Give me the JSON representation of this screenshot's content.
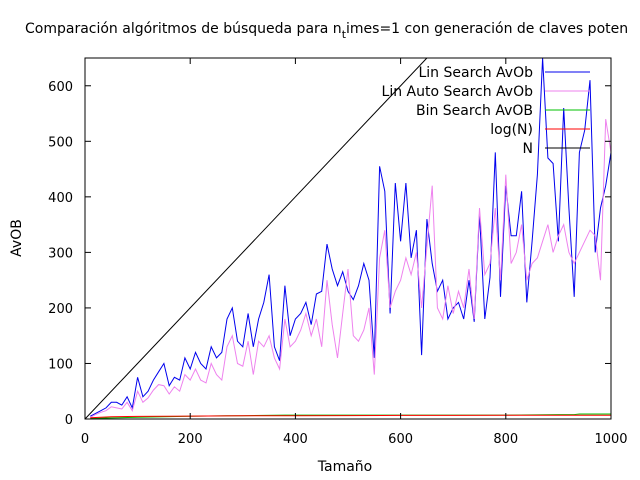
{
  "chart_data": {
    "type": "line",
    "title_main": "Comparación algóritmos de búsqueda para n",
    "title_sub": "t",
    "title_rest": "imes=1 con generación de claves poten",
    "xlabel": "Tamaño",
    "ylabel": "AvOB",
    "xlim": [
      0,
      1000
    ],
    "ylim": [
      0,
      650
    ],
    "xticks": [
      0,
      200,
      400,
      600,
      800,
      1000
    ],
    "yticks": [
      0,
      100,
      200,
      300,
      400,
      500,
      600
    ],
    "grid": false,
    "legend_position": "top-right",
    "series": [
      {
        "name": "Lin Search AvOb",
        "color": "#0000ee",
        "x": [
          10,
          20,
          30,
          40,
          50,
          60,
          70,
          80,
          90,
          100,
          110,
          120,
          130,
          140,
          150,
          160,
          170,
          180,
          190,
          200,
          210,
          220,
          230,
          240,
          250,
          260,
          270,
          280,
          290,
          300,
          310,
          320,
          330,
          340,
          350,
          360,
          370,
          380,
          390,
          400,
          410,
          420,
          430,
          440,
          450,
          460,
          470,
          480,
          490,
          500,
          510,
          520,
          530,
          540,
          550,
          560,
          570,
          580,
          590,
          600,
          610,
          620,
          630,
          640,
          650,
          660,
          670,
          680,
          690,
          700,
          710,
          720,
          730,
          740,
          750,
          760,
          770,
          780,
          790,
          800,
          810,
          820,
          830,
          840,
          850,
          860,
          870,
          880,
          890,
          900,
          910,
          920,
          930,
          940,
          950,
          960,
          970,
          980,
          990,
          1000
        ],
        "y": [
          5,
          10,
          15,
          20,
          30,
          30,
          25,
          40,
          20,
          75,
          40,
          50,
          70,
          85,
          100,
          60,
          75,
          70,
          110,
          90,
          120,
          100,
          90,
          130,
          110,
          120,
          180,
          200,
          140,
          130,
          190,
          130,
          180,
          210,
          260,
          130,
          105,
          240,
          150,
          180,
          190,
          210,
          170,
          225,
          230,
          315,
          270,
          240,
          265,
          230,
          215,
          240,
          280,
          250,
          110,
          455,
          410,
          190,
          425,
          320,
          425,
          290,
          340,
          115,
          360,
          280,
          230,
          250,
          180,
          200,
          210,
          180,
          250,
          175,
          370,
          180,
          255,
          480,
          220,
          420,
          330,
          330,
          410,
          210,
          320,
          440,
          650,
          470,
          460,
          320,
          560,
          380,
          220,
          480,
          520,
          610,
          300,
          380,
          420,
          480
        ]
      },
      {
        "name": "Lin Auto Search AvOb",
        "color": "#ee82ee",
        "x": [
          10,
          20,
          30,
          40,
          50,
          60,
          70,
          80,
          90,
          100,
          110,
          120,
          130,
          140,
          150,
          160,
          170,
          180,
          190,
          200,
          210,
          220,
          230,
          240,
          250,
          260,
          270,
          280,
          290,
          300,
          310,
          320,
          330,
          340,
          350,
          360,
          370,
          380,
          390,
          400,
          410,
          420,
          430,
          440,
          450,
          460,
          470,
          480,
          490,
          500,
          510,
          520,
          530,
          540,
          550,
          560,
          570,
          580,
          590,
          600,
          610,
          620,
          630,
          640,
          650,
          660,
          670,
          680,
          690,
          700,
          710,
          720,
          730,
          740,
          750,
          760,
          770,
          780,
          790,
          800,
          810,
          820,
          830,
          840,
          850,
          860,
          870,
          880,
          890,
          900,
          910,
          920,
          930,
          940,
          950,
          960,
          970,
          980,
          990,
          1000
        ],
        "y": [
          3,
          8,
          12,
          15,
          22,
          20,
          18,
          30,
          15,
          50,
          30,
          38,
          52,
          62,
          60,
          45,
          58,
          50,
          80,
          70,
          90,
          70,
          65,
          100,
          80,
          70,
          130,
          150,
          100,
          95,
          140,
          80,
          140,
          130,
          150,
          110,
          90,
          180,
          130,
          140,
          160,
          190,
          150,
          180,
          130,
          250,
          170,
          110,
          190,
          270,
          150,
          140,
          160,
          200,
          80,
          290,
          340,
          200,
          230,
          250,
          290,
          260,
          300,
          200,
          310,
          420,
          200,
          180,
          240,
          190,
          230,
          200,
          270,
          180,
          380,
          260,
          280,
          380,
          250,
          440,
          280,
          300,
          350,
          250,
          280,
          290,
          320,
          350,
          300,
          330,
          350,
          300,
          280,
          300,
          320,
          340,
          330,
          250,
          540,
          480
        ]
      },
      {
        "name": "Bin Search AvOB",
        "color": "#00c000",
        "x": [
          10,
          100,
          150,
          200,
          270,
          300,
          380,
          400,
          500,
          600,
          700,
          800,
          900,
          930,
          940,
          1000
        ],
        "y": [
          1,
          3,
          4,
          5,
          6,
          6,
          7,
          7,
          7,
          7,
          7,
          7,
          8,
          8,
          9,
          9
        ]
      },
      {
        "name": "log(N)",
        "color": "#ff0000",
        "x": [
          10,
          50,
          100,
          150,
          200,
          300,
          400,
          500,
          600,
          700,
          800,
          900,
          1000
        ],
        "y": [
          2.3,
          3.9,
          4.6,
          5.0,
          5.3,
          5.7,
          6.0,
          6.2,
          6.4,
          6.55,
          6.7,
          6.8,
          6.9
        ]
      },
      {
        "name": "N",
        "color": "#000000",
        "x": [
          0,
          650
        ],
        "y": [
          0,
          650
        ]
      }
    ]
  }
}
